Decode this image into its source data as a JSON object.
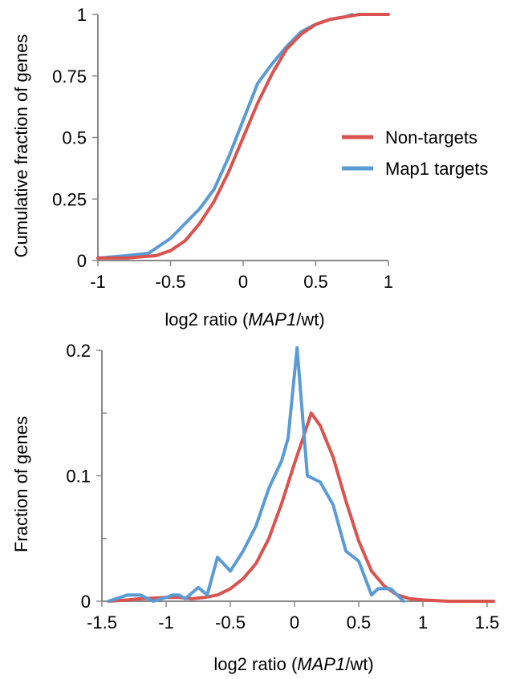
{
  "chart_data": [
    {
      "type": "line",
      "xlabel": {
        "prefix": "log2 ratio (",
        "italic": "MAP1",
        "suffix": "/wt)"
      },
      "ylabel": "Cumulative fraction of genes",
      "xlim": [
        -1,
        1
      ],
      "ylim": [
        0,
        1
      ],
      "xticks": [
        -1,
        -0.5,
        0,
        0.5,
        1
      ],
      "xtick_labels": [
        "-1",
        "-0.5",
        "0",
        "0.5",
        "1"
      ],
      "yticks": [
        0,
        0.25,
        0.5,
        0.75,
        1
      ],
      "ytick_labels": [
        "0",
        "0.25",
        "0.5",
        "0.75",
        "1"
      ],
      "legend": {
        "position": "right",
        "entries": [
          "Non-targets",
          "Map1 targets"
        ]
      },
      "series": [
        {
          "name": "Non-targets",
          "color": "#d9534f",
          "x": [
            -1.0,
            -0.8,
            -0.6,
            -0.5,
            -0.4,
            -0.3,
            -0.2,
            -0.1,
            0.0,
            0.1,
            0.2,
            0.3,
            0.4,
            0.5,
            0.6,
            0.7,
            0.8,
            1.0
          ],
          "y": [
            0.01,
            0.01,
            0.02,
            0.04,
            0.08,
            0.15,
            0.24,
            0.36,
            0.5,
            0.64,
            0.76,
            0.86,
            0.92,
            0.96,
            0.98,
            0.99,
            1.0,
            1.0
          ]
        },
        {
          "name": "Map1 targets",
          "color": "#5b9bd5",
          "x": [
            -1.0,
            -0.8,
            -0.65,
            -0.6,
            -0.5,
            -0.4,
            -0.3,
            -0.2,
            -0.1,
            0.0,
            0.1,
            0.2,
            0.3,
            0.4,
            0.5,
            0.6,
            0.7,
            0.75
          ],
          "y": [
            0.01,
            0.02,
            0.03,
            0.05,
            0.09,
            0.15,
            0.21,
            0.29,
            0.42,
            0.57,
            0.72,
            0.8,
            0.87,
            0.93,
            0.96,
            0.98,
            0.99,
            1.0
          ]
        }
      ]
    },
    {
      "type": "line",
      "xlabel": {
        "prefix": "log2 ratio (",
        "italic": "MAP1",
        "suffix": "/wt)"
      },
      "ylabel": "Fraction of genes",
      "xlim": [
        -1.5,
        1.5
      ],
      "ylim": [
        0,
        0.2
      ],
      "xticks": [
        -1.5,
        -1,
        -0.5,
        0,
        0.5,
        1,
        1.5
      ],
      "xtick_labels": [
        "-1.5",
        "-1",
        "-0.5",
        "0",
        "0.5",
        "1",
        "1.5"
      ],
      "yticks": [
        0,
        0.1,
        0.2
      ],
      "ytick_labels": [
        "0",
        "0.1",
        "0.2"
      ],
      "yminor_ticks": [
        0.05,
        0.15
      ],
      "series": [
        {
          "name": "Non-targets",
          "color": "#d9534f",
          "x": [
            -1.45,
            -1.3,
            -1.2,
            -1.0,
            -0.9,
            -0.8,
            -0.7,
            -0.6,
            -0.5,
            -0.4,
            -0.3,
            -0.2,
            -0.1,
            0.0,
            0.05,
            0.13,
            0.2,
            0.3,
            0.4,
            0.5,
            0.6,
            0.7,
            0.8,
            0.9,
            1.0,
            1.2,
            1.4,
            1.55
          ],
          "y": [
            0.0,
            0.001,
            0.002,
            0.003,
            0.003,
            0.002,
            0.003,
            0.005,
            0.01,
            0.018,
            0.03,
            0.05,
            0.078,
            0.11,
            0.125,
            0.15,
            0.14,
            0.115,
            0.08,
            0.048,
            0.024,
            0.012,
            0.005,
            0.002,
            0.001,
            0.0,
            0.0,
            0.0
          ]
        },
        {
          "name": "Map1 targets",
          "color": "#5b9bd5",
          "x": [
            -1.45,
            -1.3,
            -1.2,
            -1.1,
            -1.0,
            -0.95,
            -0.9,
            -0.85,
            -0.75,
            -0.68,
            -0.6,
            -0.5,
            -0.4,
            -0.3,
            -0.2,
            -0.1,
            -0.05,
            0.02,
            0.1,
            0.2,
            0.3,
            0.4,
            0.5,
            0.6,
            0.65,
            0.75,
            0.85
          ],
          "y": [
            0.0,
            0.005,
            0.005,
            0.0,
            0.003,
            0.005,
            0.005,
            0.002,
            0.011,
            0.005,
            0.035,
            0.024,
            0.04,
            0.06,
            0.09,
            0.112,
            0.13,
            0.202,
            0.1,
            0.095,
            0.077,
            0.04,
            0.032,
            0.005,
            0.01,
            0.01,
            0.0
          ]
        }
      ]
    }
  ]
}
